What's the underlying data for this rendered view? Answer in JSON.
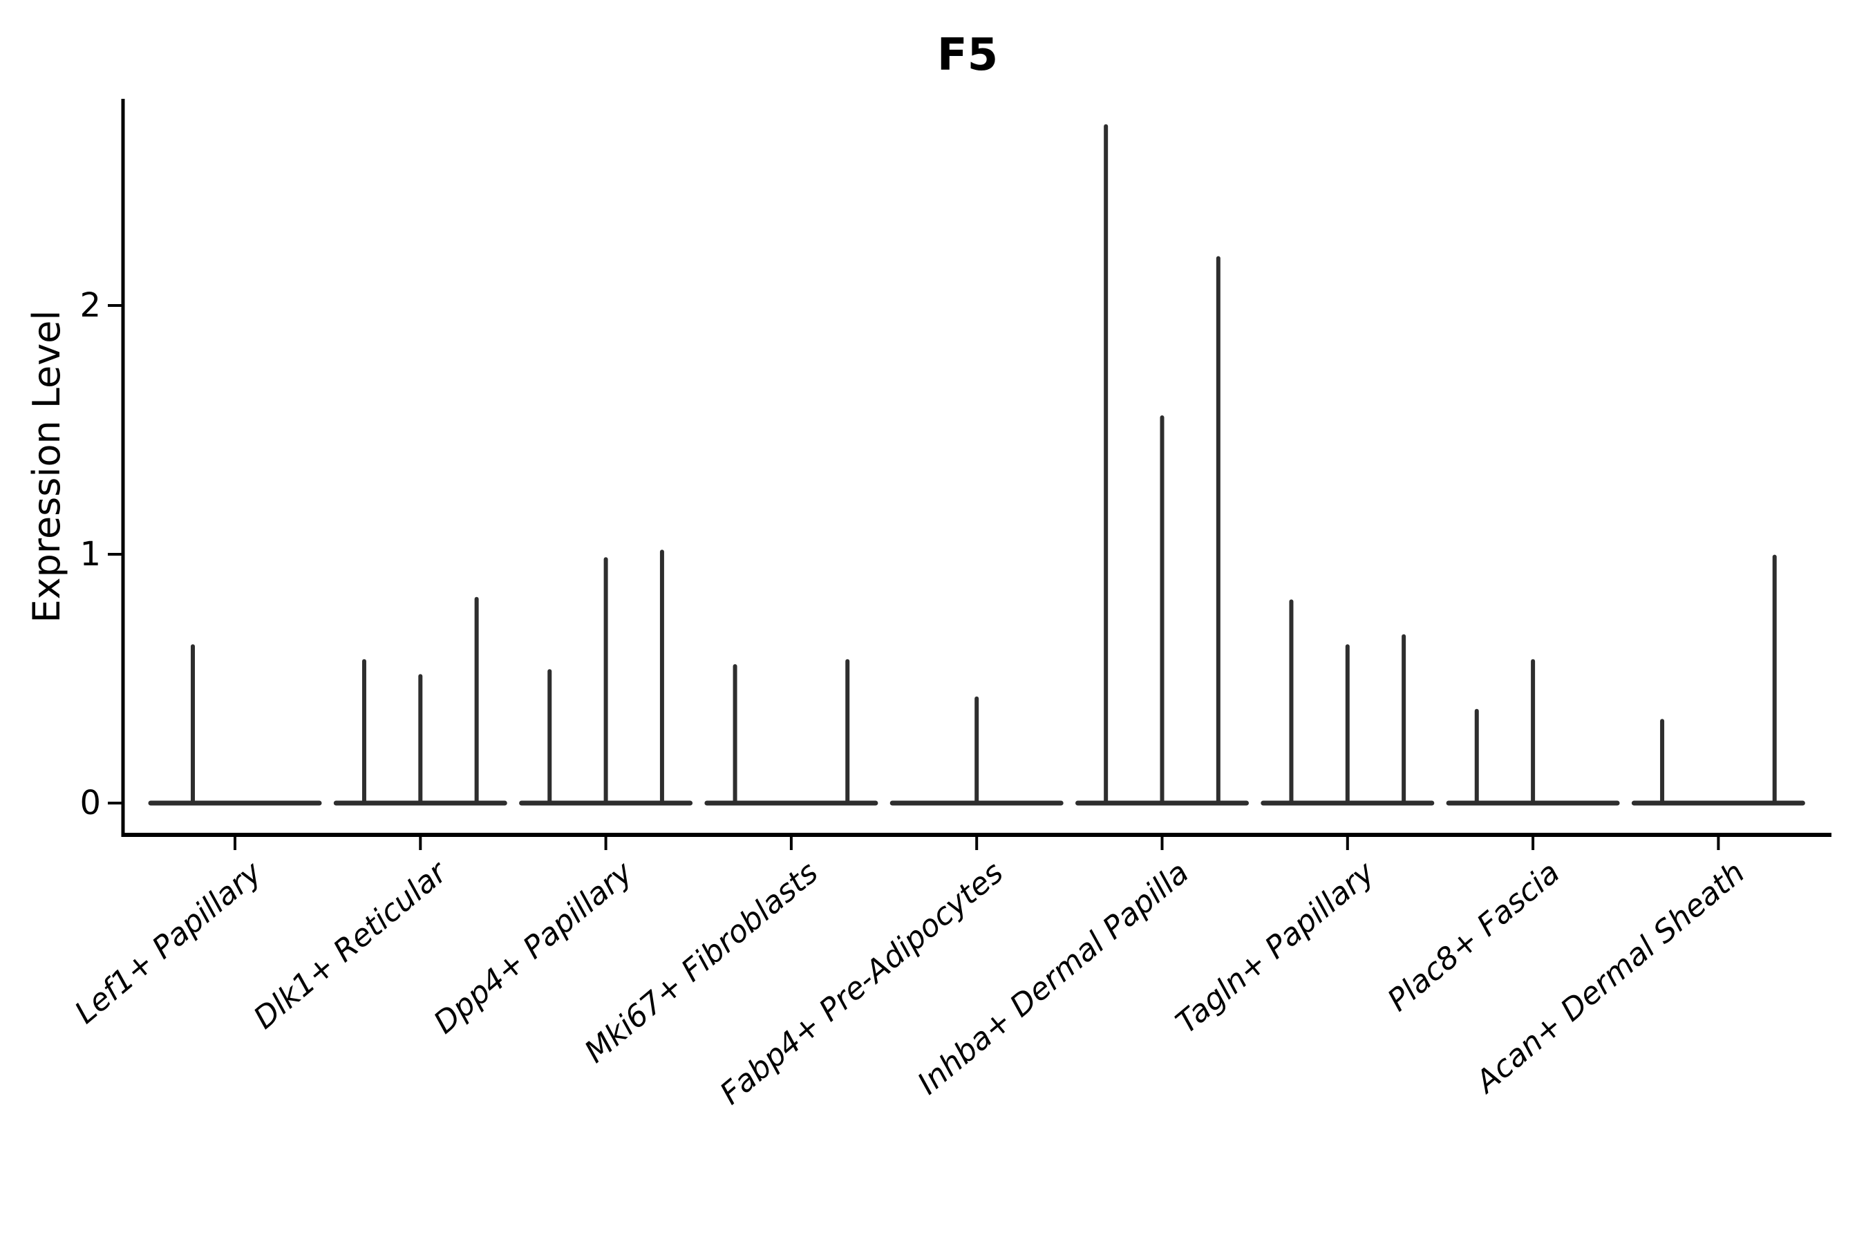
{
  "title": "F5",
  "y_axis": {
    "label": "Expression Level",
    "tick_labels": [
      "0",
      "1",
      "2"
    ]
  },
  "chart_data": {
    "type": "violin",
    "title": "F5",
    "xlabel": "",
    "ylabel": "Expression Level",
    "yticks": [
      0,
      1,
      2
    ],
    "ylim": [
      -0.13,
      2.83
    ],
    "grid": false,
    "legend_position": "none",
    "violin_color": "#2e2e2e",
    "axis_color": "#000000",
    "groups": [
      {
        "category": "Lef1+ Papillary",
        "violin_peaks": [
          0.63,
          0
        ]
      },
      {
        "category": "Dlk1+ Reticular",
        "violin_peaks": [
          0.57,
          0.51,
          0.82
        ]
      },
      {
        "category": "Dpp4+ Papillary",
        "violin_peaks": [
          0.53,
          0.98,
          1.01
        ]
      },
      {
        "category": "Mki67+ Fibroblasts",
        "violin_peaks": [
          0.55,
          0,
          0.57
        ]
      },
      {
        "category": "Fabp4+ Pre-Adipocytes",
        "violin_peaks": [
          0,
          0.42,
          0
        ]
      },
      {
        "category": "Inhba+ Dermal Papilla",
        "violin_peaks": [
          2.72,
          1.55,
          2.19
        ]
      },
      {
        "category": "Tagln+ Papillary",
        "violin_peaks": [
          0.81,
          0.63,
          0.67
        ]
      },
      {
        "category": "Plac8+ Fascia",
        "violin_peaks": [
          0.37,
          0.57,
          0
        ]
      },
      {
        "category": "Acan+ Dermal Sheath",
        "violin_peaks": [
          0.33,
          0,
          0.99
        ]
      }
    ]
  }
}
